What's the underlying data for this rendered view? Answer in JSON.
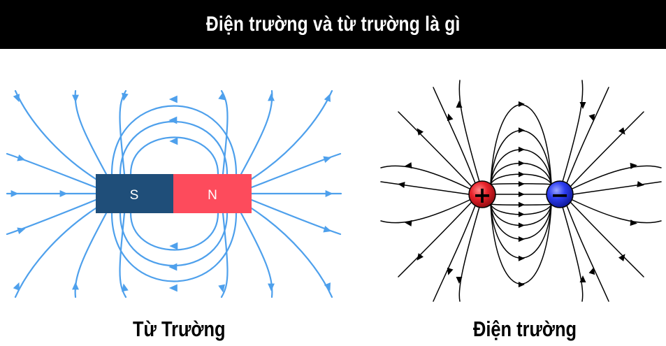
{
  "header": {
    "title": "Điện trường và từ trường là gì"
  },
  "magnetic": {
    "caption": "Từ Trường",
    "south_label": "S",
    "north_label": "N",
    "south_color": "#1f4e79",
    "north_color": "#fd4b5c",
    "line_color": "#4ea0ec"
  },
  "electric": {
    "caption": "Điện trường",
    "positive_symbol": "+",
    "negative_symbol": "−",
    "positive_color": "#e8222a",
    "negative_color": "#2c3df0",
    "line_color": "#000000"
  }
}
